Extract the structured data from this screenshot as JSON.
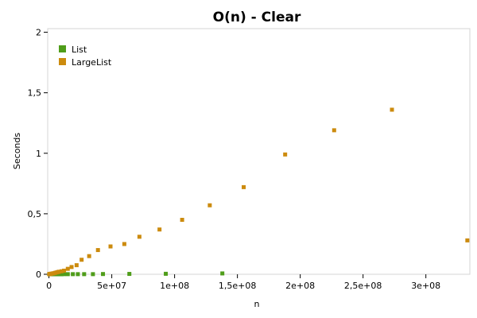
{
  "chart_data": {
    "type": "scatter",
    "title": "O(n) - Clear",
    "xlabel": "n",
    "ylabel": "Seconds",
    "xlim": [
      -1000000,
      335000000
    ],
    "ylim": [
      0,
      2.03
    ],
    "x_ticks": [
      {
        "value": 0,
        "label": "0"
      },
      {
        "value": 50000000,
        "label": "5e+07"
      },
      {
        "value": 100000000,
        "label": "1e+08"
      },
      {
        "value": 150000000,
        "label": "1,5e+08"
      },
      {
        "value": 200000000,
        "label": "2e+08"
      },
      {
        "value": 250000000,
        "label": "2,5e+08"
      },
      {
        "value": 300000000,
        "label": "3e+08"
      }
    ],
    "y_ticks": [
      {
        "value": 0,
        "label": "0"
      },
      {
        "value": 0.5,
        "label": "0,5"
      },
      {
        "value": 1,
        "label": "1"
      },
      {
        "value": 1.5,
        "label": "1,5"
      },
      {
        "value": 2,
        "label": "2"
      }
    ],
    "grid": false,
    "legend_position": "top-left",
    "series": [
      {
        "name": "List",
        "color": "#4f9d1a",
        "points": [
          [
            200000,
            0
          ],
          [
            500000,
            0
          ],
          [
            1000000,
            0
          ],
          [
            1500000,
            0
          ],
          [
            2000000,
            0
          ],
          [
            3000000,
            0
          ],
          [
            4000000,
            0
          ],
          [
            5000000,
            0
          ],
          [
            6000000,
            0
          ],
          [
            7000000,
            0
          ],
          [
            8000000,
            0
          ],
          [
            10000000,
            0
          ],
          [
            12000000,
            0.001
          ],
          [
            15000000,
            0.001
          ],
          [
            19000000,
            0.001
          ],
          [
            23000000,
            0.001
          ],
          [
            28000000,
            0.001
          ],
          [
            35000000,
            0.001
          ],
          [
            43000000,
            0.002
          ],
          [
            64000000,
            0.003
          ],
          [
            93000000,
            0.004
          ],
          [
            138000000,
            0.007
          ]
        ]
      },
      {
        "name": "LargeList",
        "color": "#cc8b0e",
        "points": [
          [
            200000,
            0.001
          ],
          [
            500000,
            0.002
          ],
          [
            1000000,
            0.003
          ],
          [
            1500000,
            0.004
          ],
          [
            2000000,
            0.005
          ],
          [
            3000000,
            0.007
          ],
          [
            4000000,
            0.009
          ],
          [
            5000000,
            0.012
          ],
          [
            6000000,
            0.015
          ],
          [
            7000000,
            0.018
          ],
          [
            8000000,
            0.021
          ],
          [
            10000000,
            0.025
          ],
          [
            12000000,
            0.03
          ],
          [
            15000000,
            0.045
          ],
          [
            18000000,
            0.06
          ],
          [
            22000000,
            0.075
          ],
          [
            26000000,
            0.12
          ],
          [
            32000000,
            0.15
          ],
          [
            39000000,
            0.2
          ],
          [
            49000000,
            0.23
          ],
          [
            60000000,
            0.25
          ],
          [
            72000000,
            0.31
          ],
          [
            88000000,
            0.37
          ],
          [
            106000000,
            0.45
          ],
          [
            128000000,
            0.57
          ],
          [
            155000000,
            0.72
          ],
          [
            188000000,
            0.99
          ],
          [
            227000000,
            1.19
          ],
          [
            273000000,
            1.36
          ],
          [
            333000000,
            0.28
          ]
        ]
      }
    ]
  }
}
